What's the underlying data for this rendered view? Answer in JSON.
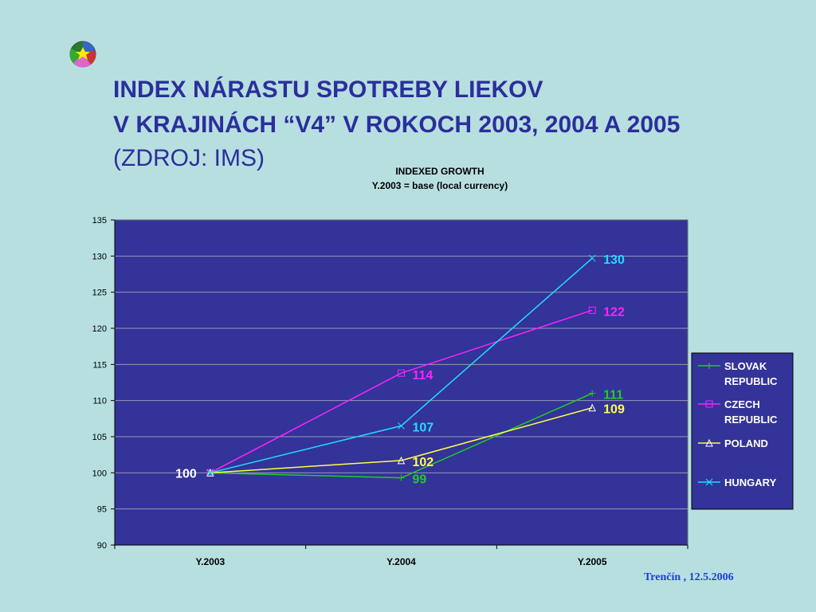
{
  "slide": {
    "title_line1": "INDEX NÁRASTU SPOTREBY LIEKOV",
    "title_line2": "V KRAJINÁCH “V4” V ROKOCH 2003, 2004 A 2005",
    "title_line3": "(ZDROJ: IMS)",
    "footer": "Trenčín , 12.5.2006"
  },
  "chart_data": {
    "type": "line",
    "title": "INDEXED GROWTH",
    "subtitle": "Y.2003 = base (local currency)",
    "categories": [
      "Y.2003",
      "Y.2004",
      "Y.2005"
    ],
    "ylim": [
      90,
      135
    ],
    "yticks": [
      90,
      95,
      100,
      105,
      110,
      115,
      120,
      125,
      130,
      135
    ],
    "grid": true,
    "legend": "right",
    "plot_background": "#333399",
    "series": [
      {
        "name": "SLOVAK REPUBLIC",
        "name_lines": [
          "SLOVAK",
          "REPUBLIC"
        ],
        "values": [
          100,
          99.3,
          111
        ],
        "labels": [
          "",
          "99",
          "111"
        ],
        "color": "#22cc22",
        "marker": "plus"
      },
      {
        "name": "CZECH REPUBLIC",
        "name_lines": [
          "CZECH",
          "REPUBLIC"
        ],
        "values": [
          100,
          113.8,
          122.5
        ],
        "labels": [
          "",
          "114",
          "122"
        ],
        "color": "#ff22ff",
        "marker": "square"
      },
      {
        "name": "POLAND",
        "name_lines": [
          "POLAND"
        ],
        "values": [
          100,
          101.7,
          109
        ],
        "labels": [
          "",
          "102",
          "109"
        ],
        "color": "#ffff44",
        "marker": "triangle"
      },
      {
        "name": "HUNGARY",
        "name_lines": [
          "HUNGARY"
        ],
        "values": [
          100,
          106.5,
          129.7
        ],
        "labels": [
          "",
          "107",
          "130"
        ],
        "color": "#22ddff",
        "marker": "cross"
      }
    ],
    "annotations": [
      {
        "text": "100",
        "category": "Y.2003",
        "value": 100,
        "color": "#ffffff"
      }
    ]
  }
}
